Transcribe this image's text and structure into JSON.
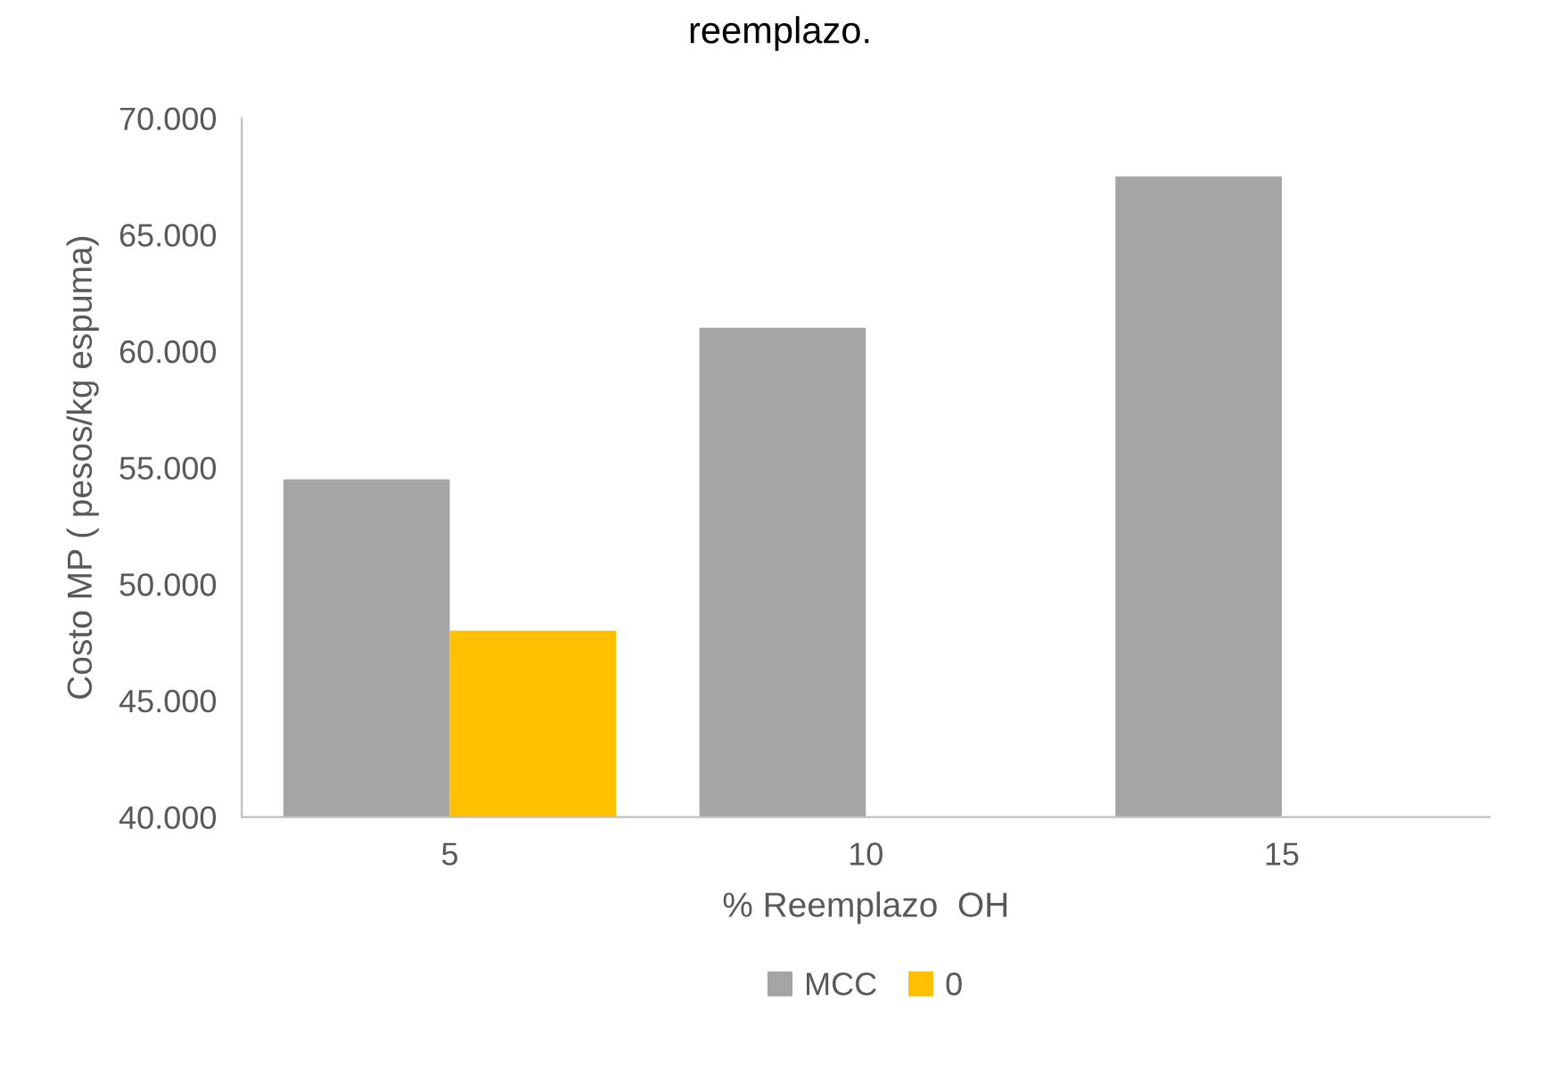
{
  "chart_data": {
    "type": "bar",
    "title": "reemplazo.",
    "xlabel": "% Reemplazo  OH",
    "ylabel": "Costo MP ( pesos/kg espuma)",
    "categories": [
      "5",
      "10",
      "15"
    ],
    "series": [
      {
        "name": "MCC",
        "color": "#a5a5a5",
        "values": [
          54500,
          61000,
          67500
        ]
      },
      {
        "name": "0",
        "color": "#ffc000",
        "values": [
          48000,
          null,
          null
        ]
      }
    ],
    "ylim": [
      40000,
      70000
    ],
    "yticks": [
      {
        "value": 40000,
        "label": "40.000"
      },
      {
        "value": 45000,
        "label": "45.000"
      },
      {
        "value": 50000,
        "label": "50.000"
      },
      {
        "value": 55000,
        "label": "55.000"
      },
      {
        "value": 60000,
        "label": "60.000"
      },
      {
        "value": 65000,
        "label": "65.000"
      },
      {
        "value": 70000,
        "label": "70.000"
      }
    ],
    "grid": false,
    "legend": "bottom"
  }
}
